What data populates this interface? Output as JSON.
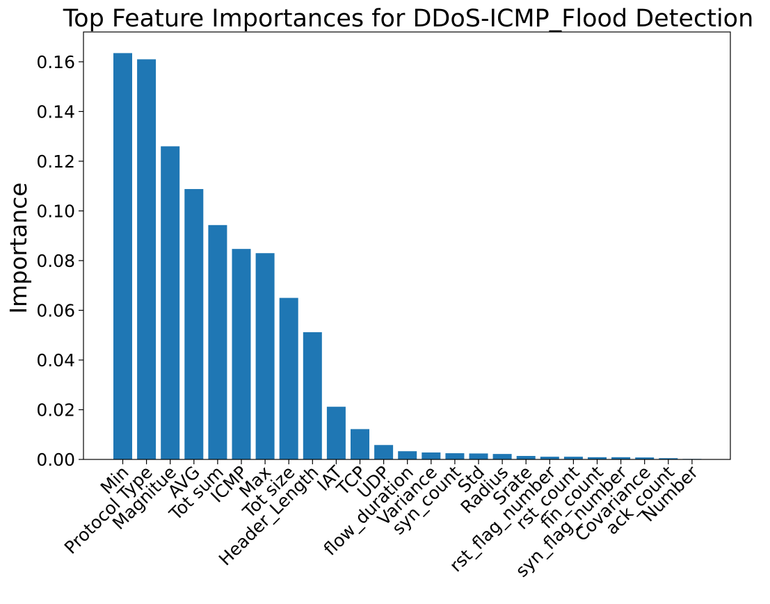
{
  "chart_data": {
    "type": "bar",
    "title": "Top Feature Importances for DDoS-ICMP_Flood Detection",
    "xlabel": "",
    "ylabel": "Importance",
    "ylim": [
      0,
      0.172
    ],
    "yticks": [
      "0.00",
      "0.02",
      "0.04",
      "0.06",
      "0.08",
      "0.10",
      "0.12",
      "0.14",
      "0.16"
    ],
    "categories": [
      "Min",
      "Protocol Type",
      "Magnitue",
      "AVG",
      "Tot sum",
      "ICMP",
      "Max",
      "Tot size",
      "Header_Length",
      "IAT",
      "TCP",
      "UDP",
      "flow_duration",
      "Variance",
      "syn_count",
      "Std",
      "Radius",
      "Srate",
      "rst_flag_number",
      "rst_count",
      "fin_count",
      "syn_flag_number",
      "Covariance",
      "ack_count",
      "Number"
    ],
    "values": [
      0.1635,
      0.161,
      0.126,
      0.1088,
      0.0943,
      0.0847,
      0.083,
      0.065,
      0.0512,
      0.0212,
      0.0122,
      0.0058,
      0.0033,
      0.0028,
      0.0025,
      0.0024,
      0.0022,
      0.0014,
      0.0011,
      0.0011,
      0.0009,
      0.0009,
      0.0008,
      0.0005,
      0.0002
    ],
    "colors": {
      "bar": "#1f77b4"
    },
    "grid": false
  }
}
